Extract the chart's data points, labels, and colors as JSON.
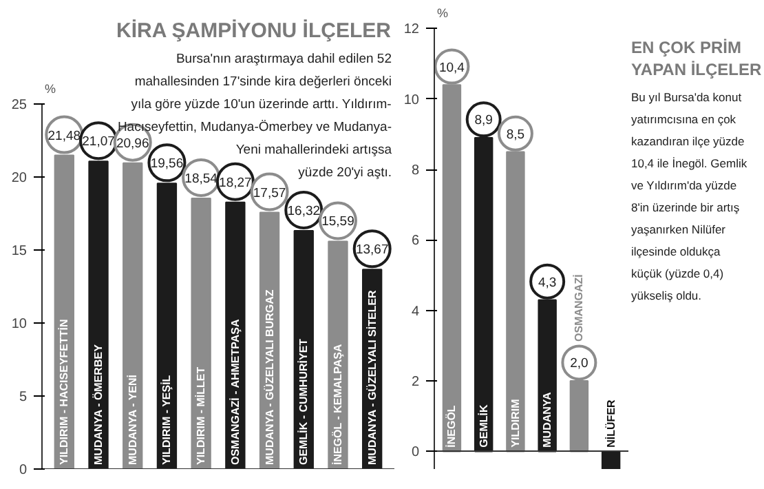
{
  "chart_data": [
    {
      "type": "bar",
      "title": "KİRA ŞAMPİYONU İLÇELER",
      "ylabel": "%",
      "annotations": [
        "Bursa'nın araştırmaya dahil edilen 52\nmahallesinden 17'sinde kira değerleri önceki\nyıla göre yüzde 10'un üzerinde arttı. Yıldırım-\nHacıseyfettin, Mudanya-Ömerbey ve Mudanya-\nYeni mahallerindeki artışsa\nyüzde 20'yi aştı."
      ],
      "categories": [
        "YILDIRIM - HACISEYFETTİN",
        "MUDANYA - ÖMERBEY",
        "MUDANYA - YENİ",
        "YILDIRIM - YEŞİL",
        "YILDIRIM - MİLLET",
        "OSMANGAZİ - AHMETPAŞA",
        "MUDANYA - GÜZELYALI BURGAZ",
        "GEMLİK - CUMHURİYET",
        "İNEGÖL - KEMALPAŞA",
        "MUDANYA - GÜZELYALI SİTELER"
      ],
      "values": [
        21.48,
        21.07,
        20.96,
        19.56,
        18.54,
        18.27,
        17.57,
        16.32,
        15.59,
        13.67
      ],
      "value_labels": [
        "21,48",
        "21,07",
        "20,96",
        "19,56",
        "18,54",
        "18,27",
        "17,57",
        "16,32",
        "15,59",
        "13,67"
      ],
      "colors": [
        "#8c8c8c",
        "#1c1c1c",
        "#8c8c8c",
        "#1c1c1c",
        "#8c8c8c",
        "#1c1c1c",
        "#8c8c8c",
        "#1c1c1c",
        "#8c8c8c",
        "#1c1c1c"
      ],
      "ylim": [
        0,
        25
      ],
      "yticks": [
        0,
        5,
        10,
        15,
        20,
        25
      ],
      "grid": false
    },
    {
      "type": "bar",
      "title": "EN ÇOK PRİM\nYAPAN İLÇELER",
      "ylabel": "%",
      "annotations": [
        "Bu yıl Bursa'da konut\nyatırımcısına en çok\nkazandıran ilçe yüzde\n10,4 ile İnegöl. Gemlik\nve Yıldırım'da yüzde\n8'in üzerinde bir artış\nyaşanırken Nilüfer\nilçesinde oldukça\nküçük (yüzde 0,4)\nyükseliş oldu."
      ],
      "categories": [
        "İNEGÖL",
        "GEMLİK",
        "YILDIRIM",
        "MUDANYA",
        "OSMANGAZİ",
        "NİLÜFER"
      ],
      "values": [
        10.4,
        8.9,
        8.5,
        4.3,
        2.0,
        -0.5
      ],
      "value_labels": [
        "10,4",
        "8,9",
        "8,5",
        "4,3",
        "2,0",
        null
      ],
      "colors": [
        "#8c8c8c",
        "#1c1c1c",
        "#8c8c8c",
        "#1c1c1c",
        "#8c8c8c",
        "#1c1c1c"
      ],
      "ylim": [
        -0.5,
        12
      ],
      "yticks": [
        0,
        2,
        4,
        6,
        8,
        10,
        12
      ],
      "grid": false
    }
  ]
}
